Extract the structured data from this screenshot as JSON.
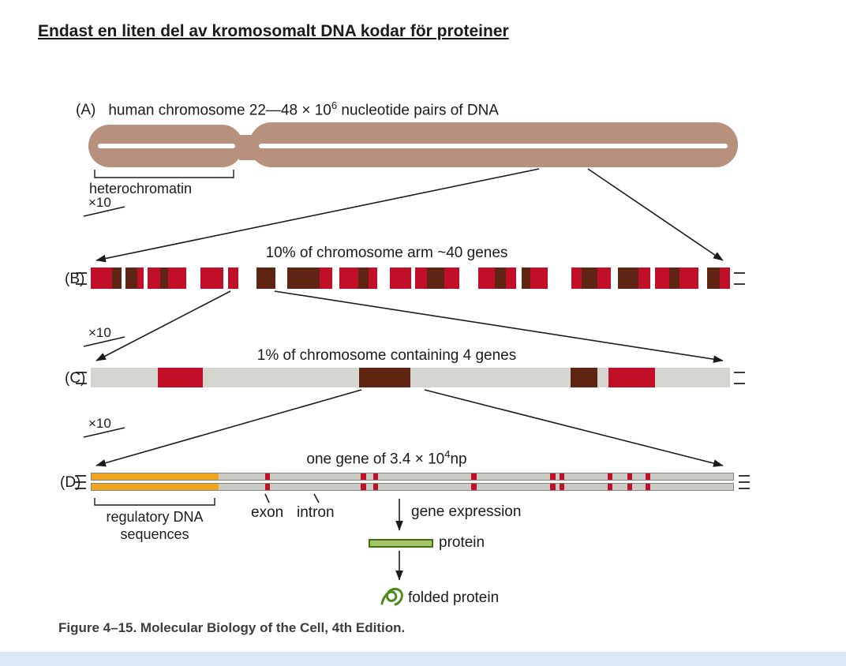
{
  "slide": {
    "title": "Endast en liten del av kromosomalt DNA kodar för proteiner"
  },
  "figure": {
    "caption": "Figure 4–15. Molecular Biology of the Cell, 4th Edition.",
    "scale_label": "×10"
  },
  "panel_a": {
    "label": "(A)",
    "heading_prefix": "human chromosome 22—48 × 10",
    "heading_exponent": "6",
    "heading_suffix": " nucleotide pairs of DNA",
    "heterochromatin_label": "heterochromatin"
  },
  "panel_b": {
    "label": "(B)",
    "heading": "10% of chromosome arm ~40 genes",
    "segments": [
      {
        "c": "red",
        "w": 2.8
      },
      {
        "c": "brown",
        "w": 1.2
      },
      {
        "c": "white",
        "w": 0.5
      },
      {
        "c": "brown",
        "w": 1.5
      },
      {
        "c": "red",
        "w": 0.9
      },
      {
        "c": "white",
        "w": 0.5
      },
      {
        "c": "red",
        "w": 1.6
      },
      {
        "c": "brown",
        "w": 1.1
      },
      {
        "c": "red",
        "w": 2.3
      },
      {
        "c": "white",
        "w": 1.9
      },
      {
        "c": "red",
        "w": 2.9
      },
      {
        "c": "white",
        "w": 0.7
      },
      {
        "c": "red",
        "w": 1.3
      },
      {
        "c": "white",
        "w": 2.3
      },
      {
        "c": "brown",
        "w": 2.5
      },
      {
        "c": "white",
        "w": 1.5
      },
      {
        "c": "brown",
        "w": 4.2
      },
      {
        "c": "red",
        "w": 1.7
      },
      {
        "c": "white",
        "w": 0.9
      },
      {
        "c": "red",
        "w": 2.5
      },
      {
        "c": "brown",
        "w": 1.3
      },
      {
        "c": "red",
        "w": 1.1
      },
      {
        "c": "white",
        "w": 1.7
      },
      {
        "c": "red",
        "w": 2.7
      },
      {
        "c": "white",
        "w": 0.6
      },
      {
        "c": "red",
        "w": 1.5
      },
      {
        "c": "brown",
        "w": 2.3
      },
      {
        "c": "red",
        "w": 1.9
      },
      {
        "c": "white",
        "w": 2.5
      },
      {
        "c": "red",
        "w": 2.1
      },
      {
        "c": "brown",
        "w": 1.5
      },
      {
        "c": "red",
        "w": 1.3
      },
      {
        "c": "white",
        "w": 0.7
      },
      {
        "c": "brown",
        "w": 1.1
      },
      {
        "c": "red",
        "w": 2.3
      },
      {
        "c": "white",
        "w": 3.1
      },
      {
        "c": "red",
        "w": 1.3
      },
      {
        "c": "brown",
        "w": 2.1
      },
      {
        "c": "red",
        "w": 1.7
      },
      {
        "c": "white",
        "w": 0.9
      },
      {
        "c": "brown",
        "w": 2.7
      },
      {
        "c": "red",
        "w": 1.5
      },
      {
        "c": "white",
        "w": 0.6
      },
      {
        "c": "red",
        "w": 1.9
      },
      {
        "c": "brown",
        "w": 1.3
      },
      {
        "c": "red",
        "w": 2.5
      },
      {
        "c": "white",
        "w": 1.1
      },
      {
        "c": "brown",
        "w": 1.7
      },
      {
        "c": "red",
        "w": 1.3
      }
    ]
  },
  "panel_c": {
    "label": "(C)",
    "heading": "1% of chromosome containing 4 genes",
    "blocks": [
      {
        "color": "red",
        "start": 10.5,
        "width": 7.0
      },
      {
        "color": "brown",
        "start": 42.0,
        "width": 8.0
      },
      {
        "color": "brown",
        "start": 75.1,
        "width": 4.2
      },
      {
        "color": "red",
        "start": 81.0,
        "width": 7.3
      }
    ]
  },
  "panel_d": {
    "label": "(D)",
    "heading_prefix": "one gene of 3.4 × 10",
    "heading_exponent": "4",
    "heading_suffix": "np",
    "regulatory_width_pct": 19.8,
    "exon_stripe_width_pct": 0.8,
    "exon_positions_pct": [
      27.0,
      42.0,
      43.9,
      59.2,
      71.5,
      72.9,
      80.4,
      83.5,
      86.3
    ],
    "labels": {
      "regulatory_line1": "regulatory DNA",
      "regulatory_line2": "sequences",
      "exon": "exon",
      "intron": "intron",
      "gene_expression": "gene expression",
      "protein": "protein",
      "folded_protein": "folded protein"
    }
  },
  "colors": {
    "chromosome_tan": "#b7907e",
    "segment_red": "#c00f26",
    "segment_brown": "#5f2412",
    "bar_gray": "#d6d6d1",
    "track_gray": "#cbcbc6",
    "regulatory_orange": "#f0a51e",
    "protein_green_fill": "#a6c469",
    "protein_green_border": "#3f7312",
    "folded_green": "#4c8a1a",
    "bottom_strip": "#dce8f5"
  }
}
